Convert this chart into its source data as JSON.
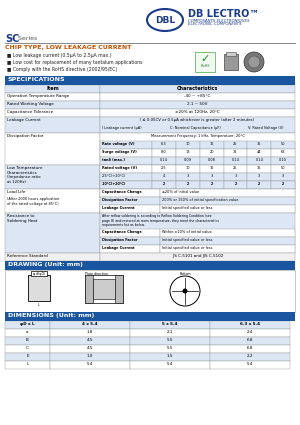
{
  "header_bg": "#1a56a0",
  "orange_text": "#c85000",
  "blue_text": "#1a3a8a",
  "row_alt": "#dce6f5",
  "row_white": "#ffffff",
  "border_color": "#999999",
  "body_bg": "#ffffff",
  "spec_rows": [
    [
      "Item",
      "Characteristics"
    ],
    [
      "Operation Temperature Range",
      "-40 ~ +85°C"
    ],
    [
      "Rated Working Voltage",
      "2.1 ~ 50V"
    ],
    [
      "Capacitance Tolerance",
      "±20% at 120Hz, 20°C"
    ]
  ],
  "dissipation_rows": [
    [
      "Rate voltage (V)",
      "6.3",
      "10",
      "16",
      "25",
      "35",
      "50"
    ],
    [
      "Surge voltage (V)",
      "8.0",
      "13",
      "20",
      "32",
      "44",
      "63"
    ],
    [
      "tanδ (max.)",
      "0.14",
      "0.09",
      "0.08",
      "0.14",
      "0.14",
      "0.10"
    ]
  ],
  "ltemp_rows": [
    [
      "Rated voltage (V)",
      "2.5",
      "10",
      "16",
      "25",
      "35",
      "50"
    ],
    [
      "-25°C(+20°C)",
      "4",
      "3",
      "3",
      "3",
      "3",
      "3"
    ],
    [
      "-10°C(+20°C)",
      "2",
      "2",
      "2",
      "2",
      "2",
      "2"
    ]
  ],
  "load_rows": [
    [
      "Capacitance Change",
      "≤20% of initial value"
    ],
    [
      "Dissipation Factor",
      "200% or 150% of initial specification value"
    ],
    [
      "Leakage Current",
      "Initial specified value or less"
    ]
  ],
  "soldering_rows": [
    [
      "Capacitance Change",
      "Within ±10% of initial value"
    ],
    [
      "Dissipation Factor",
      "Initial specified value or less"
    ],
    [
      "Leakage Current",
      "Initial specified value or less"
    ]
  ],
  "dim_headers": [
    "φD x L",
    "4 x 5.4",
    "5 x 5.4",
    "6.3 x 5.4"
  ],
  "dim_rows": [
    [
      "a",
      "1.8",
      "2.1",
      "2.4"
    ],
    [
      "B",
      "4.5",
      "5.5",
      "6.8"
    ],
    [
      "C",
      "4.5",
      "5.5",
      "6.8"
    ],
    [
      "E",
      "1.0",
      "1.5",
      "2.2"
    ],
    [
      "L",
      "5.4",
      "5.4",
      "5.4"
    ]
  ]
}
